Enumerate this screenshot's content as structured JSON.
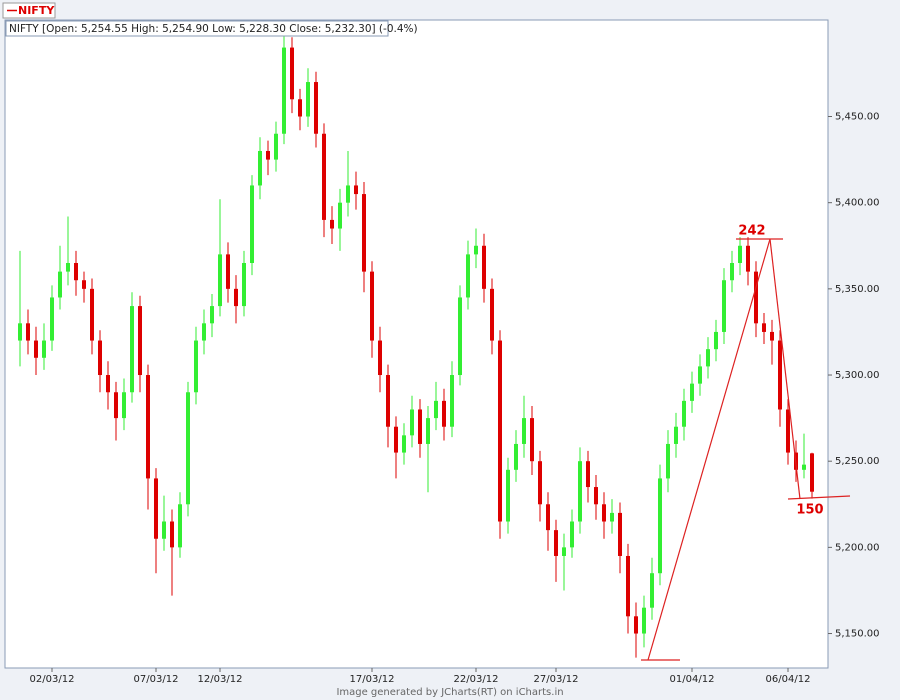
{
  "chart_data": {
    "type": "candlestick",
    "legend": "NIFTY",
    "info": "NIFTY [Open: 5,254.55  High: 5,254.90  Low: 5,228.30  Close: 5,232.30] (-0.4%)",
    "footer": "Image generated by  JCharts(RT) on iCharts.in",
    "annotations": [
      "242",
      "150"
    ],
    "up_color": "#33ee33",
    "down_color": "#dd0000",
    "ylim": [
      5130,
      5506
    ],
    "yticks": [
      {
        "value": 5150,
        "label": "5,150.00"
      },
      {
        "value": 5200,
        "label": "5,200.00"
      },
      {
        "value": 5250,
        "label": "5,250.00"
      },
      {
        "value": 5300,
        "label": "5,300.00"
      },
      {
        "value": 5350,
        "label": "5,350.00"
      },
      {
        "value": 5400,
        "label": "5,400.00"
      },
      {
        "value": 5450,
        "label": "5,450.00"
      }
    ],
    "categories": [
      null,
      null,
      null,
      null,
      "02/03/12",
      null,
      null,
      null,
      null,
      null,
      null,
      null,
      null,
      null,
      null,
      null,
      null,
      "07/03/12",
      null,
      null,
      null,
      null,
      null,
      null,
      null,
      "12/03/12",
      null,
      null,
      null,
      null,
      null,
      null,
      null,
      null,
      null,
      null,
      null,
      null,
      null,
      null,
      null,
      null,
      null,
      null,
      "17/03/12",
      null,
      null,
      null,
      null,
      null,
      null,
      null,
      null,
      null,
      null,
      null,
      null,
      "22/03/12",
      null,
      null,
      null,
      null,
      null,
      null,
      null,
      null,
      null,
      "27/03/12",
      null,
      null,
      null,
      null,
      null,
      null,
      null,
      null,
      null,
      null,
      null,
      null,
      null,
      null,
      null,
      null,
      "01/04/12",
      null,
      null,
      null,
      null,
      null,
      null,
      null,
      null,
      null,
      null,
      null,
      "06/04/12",
      null,
      null,
      null
    ],
    "ohlc": [
      [
        5320,
        5372,
        5305,
        5330
      ],
      [
        5330,
        5338,
        5312,
        5320
      ],
      [
        5320,
        5328,
        5300,
        5310
      ],
      [
        5310,
        5330,
        5303,
        5320
      ],
      [
        5320,
        5352,
        5314,
        5345
      ],
      [
        5345,
        5375,
        5338,
        5360
      ],
      [
        5360,
        5392,
        5352,
        5365
      ],
      [
        5365,
        5372,
        5346,
        5355
      ],
      [
        5355,
        5360,
        5342,
        5350
      ],
      [
        5350,
        5356,
        5312,
        5320
      ],
      [
        5320,
        5326,
        5290,
        5300
      ],
      [
        5300,
        5308,
        5280,
        5290
      ],
      [
        5290,
        5296,
        5262,
        5275
      ],
      [
        5275,
        5298,
        5268,
        5290
      ],
      [
        5290,
        5348,
        5284,
        5340
      ],
      [
        5340,
        5346,
        5290,
        5300
      ],
      [
        5300,
        5306,
        5222,
        5240
      ],
      [
        5240,
        5246,
        5185,
        5205
      ],
      [
        5205,
        5230,
        5198,
        5215
      ],
      [
        5215,
        5222,
        5172,
        5200
      ],
      [
        5200,
        5232,
        5194,
        5225
      ],
      [
        5225,
        5296,
        5218,
        5290
      ],
      [
        5290,
        5328,
        5283,
        5320
      ],
      [
        5320,
        5338,
        5312,
        5330
      ],
      [
        5330,
        5347,
        5322,
        5340
      ],
      [
        5340,
        5402,
        5334,
        5370
      ],
      [
        5370,
        5377,
        5342,
        5350
      ],
      [
        5350,
        5358,
        5330,
        5340
      ],
      [
        5340,
        5372,
        5334,
        5365
      ],
      [
        5365,
        5416,
        5358,
        5410
      ],
      [
        5410,
        5438,
        5402,
        5430
      ],
      [
        5430,
        5436,
        5416,
        5425
      ],
      [
        5425,
        5447,
        5418,
        5440
      ],
      [
        5440,
        5500,
        5434,
        5490
      ],
      [
        5490,
        5496,
        5452,
        5460
      ],
      [
        5460,
        5466,
        5442,
        5450
      ],
      [
        5450,
        5478,
        5444,
        5470
      ],
      [
        5470,
        5476,
        5432,
        5440
      ],
      [
        5440,
        5446,
        5380,
        5390
      ],
      [
        5390,
        5398,
        5376,
        5385
      ],
      [
        5385,
        5408,
        5372,
        5400
      ],
      [
        5400,
        5430,
        5392,
        5410
      ],
      [
        5410,
        5418,
        5396,
        5405
      ],
      [
        5405,
        5412,
        5348,
        5360
      ],
      [
        5360,
        5366,
        5310,
        5320
      ],
      [
        5320,
        5328,
        5290,
        5300
      ],
      [
        5300,
        5306,
        5258,
        5270
      ],
      [
        5270,
        5276,
        5240,
        5255
      ],
      [
        5255,
        5272,
        5248,
        5265
      ],
      [
        5265,
        5288,
        5258,
        5280
      ],
      [
        5280,
        5286,
        5252,
        5260
      ],
      [
        5260,
        5282,
        5232,
        5275
      ],
      [
        5275,
        5296,
        5268,
        5285
      ],
      [
        5285,
        5292,
        5262,
        5270
      ],
      [
        5270,
        5308,
        5264,
        5300
      ],
      [
        5300,
        5352,
        5294,
        5345
      ],
      [
        5345,
        5378,
        5338,
        5370
      ],
      [
        5370,
        5385,
        5362,
        5375
      ],
      [
        5375,
        5382,
        5342,
        5350
      ],
      [
        5350,
        5356,
        5312,
        5320
      ],
      [
        5320,
        5326,
        5205,
        5215
      ],
      [
        5215,
        5252,
        5208,
        5245
      ],
      [
        5245,
        5268,
        5238,
        5260
      ],
      [
        5260,
        5288,
        5252,
        5275
      ],
      [
        5275,
        5282,
        5242,
        5250
      ],
      [
        5250,
        5256,
        5215,
        5225
      ],
      [
        5225,
        5232,
        5198,
        5210
      ],
      [
        5210,
        5216,
        5180,
        5195
      ],
      [
        5195,
        5208,
        5175,
        5200
      ],
      [
        5200,
        5222,
        5194,
        5215
      ],
      [
        5215,
        5258,
        5208,
        5250
      ],
      [
        5250,
        5256,
        5226,
        5235
      ],
      [
        5235,
        5242,
        5216,
        5225
      ],
      [
        5225,
        5232,
        5205,
        5215
      ],
      [
        5215,
        5228,
        5208,
        5220
      ],
      [
        5220,
        5226,
        5185,
        5195
      ],
      [
        5195,
        5202,
        5150,
        5160
      ],
      [
        5160,
        5168,
        5136,
        5150
      ],
      [
        5150,
        5172,
        5142,
        5165
      ],
      [
        5165,
        5194,
        5158,
        5185
      ],
      [
        5185,
        5248,
        5178,
        5240
      ],
      [
        5240,
        5268,
        5232,
        5260
      ],
      [
        5260,
        5278,
        5252,
        5270
      ],
      [
        5270,
        5292,
        5262,
        5285
      ],
      [
        5285,
        5302,
        5278,
        5295
      ],
      [
        5295,
        5312,
        5288,
        5305
      ],
      [
        5305,
        5322,
        5298,
        5315
      ],
      [
        5315,
        5332,
        5308,
        5325
      ],
      [
        5325,
        5362,
        5318,
        5355
      ],
      [
        5355,
        5372,
        5348,
        5365
      ],
      [
        5365,
        5380,
        5358,
        5375
      ],
      [
        5375,
        5380,
        5352,
        5360
      ],
      [
        5360,
        5366,
        5322,
        5330
      ],
      [
        5330,
        5336,
        5318,
        5325
      ],
      [
        5325,
        5332,
        5306,
        5320
      ],
      [
        5320,
        5326,
        5270,
        5280
      ],
      [
        5280,
        5286,
        5248,
        5255
      ],
      [
        5255,
        5262,
        5238,
        5245
      ],
      [
        5245,
        5266,
        5240,
        5248
      ],
      [
        5254.55,
        5254.9,
        5228.3,
        5232.3
      ]
    ]
  }
}
